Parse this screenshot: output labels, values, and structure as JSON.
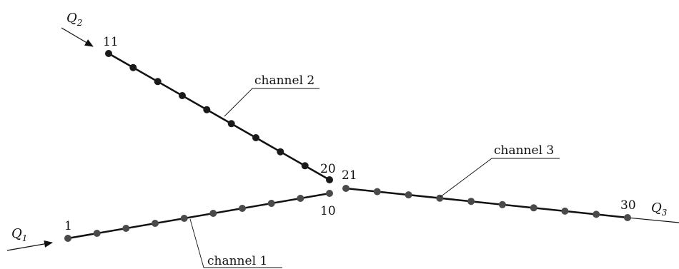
{
  "flows": {
    "q1": {
      "symbol": "Q",
      "sub": "1"
    },
    "q2": {
      "symbol": "Q",
      "sub": "2"
    },
    "q3": {
      "symbol": "Q",
      "sub": "3"
    }
  },
  "channels": {
    "c1": {
      "label": "channel 1",
      "color": "#4a4a4a"
    },
    "c2": {
      "label": "channel 2",
      "color": "#1a1a1a"
    },
    "c3": {
      "label": "channel 3",
      "color": "#4a4a4a"
    }
  },
  "node_labels": {
    "n1": "1",
    "n10": "10",
    "n11": "11",
    "n20": "20",
    "n21": "21",
    "n30": "30"
  }
}
